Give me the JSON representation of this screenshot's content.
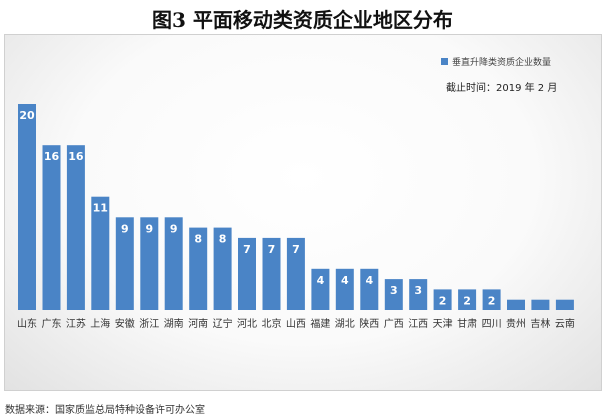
{
  "chart_data": {
    "type": "bar",
    "title": "图3 平面移动类资质企业地区分布",
    "series": [
      {
        "name": "垂直升降类资质企业数量",
        "color": "#4a84c6",
        "values": [
          20,
          16,
          16,
          11,
          9,
          9,
          9,
          8,
          8,
          7,
          7,
          7,
          4,
          4,
          4,
          3,
          3,
          2,
          2,
          2,
          1,
          1,
          1
        ]
      }
    ],
    "categories": [
      "山东",
      "广东",
      "江苏",
      "上海",
      "安徽",
      "浙江",
      "湖南",
      "河南",
      "辽宁",
      "河北",
      "北京",
      "山西",
      "福建",
      "湖北",
      "陕西",
      "广西",
      "江西",
      "天津",
      "甘肃",
      "四川",
      "贵州",
      "吉林",
      "云南"
    ],
    "data_labels": [
      "20",
      "16",
      "16",
      "11",
      "9",
      "9",
      "9",
      "8",
      "8",
      "7",
      "7",
      "7",
      "4",
      "4",
      "4",
      "3",
      "3",
      "2",
      "2",
      "2",
      "",
      "",
      ""
    ],
    "annotation": "截止时间：2019 年 2 月",
    "legend_position": "top-right",
    "grid": false,
    "ylim": [
      0,
      21
    ]
  },
  "footer": {
    "source": "数据来源：国家质监总局特种设备许可办公室"
  }
}
